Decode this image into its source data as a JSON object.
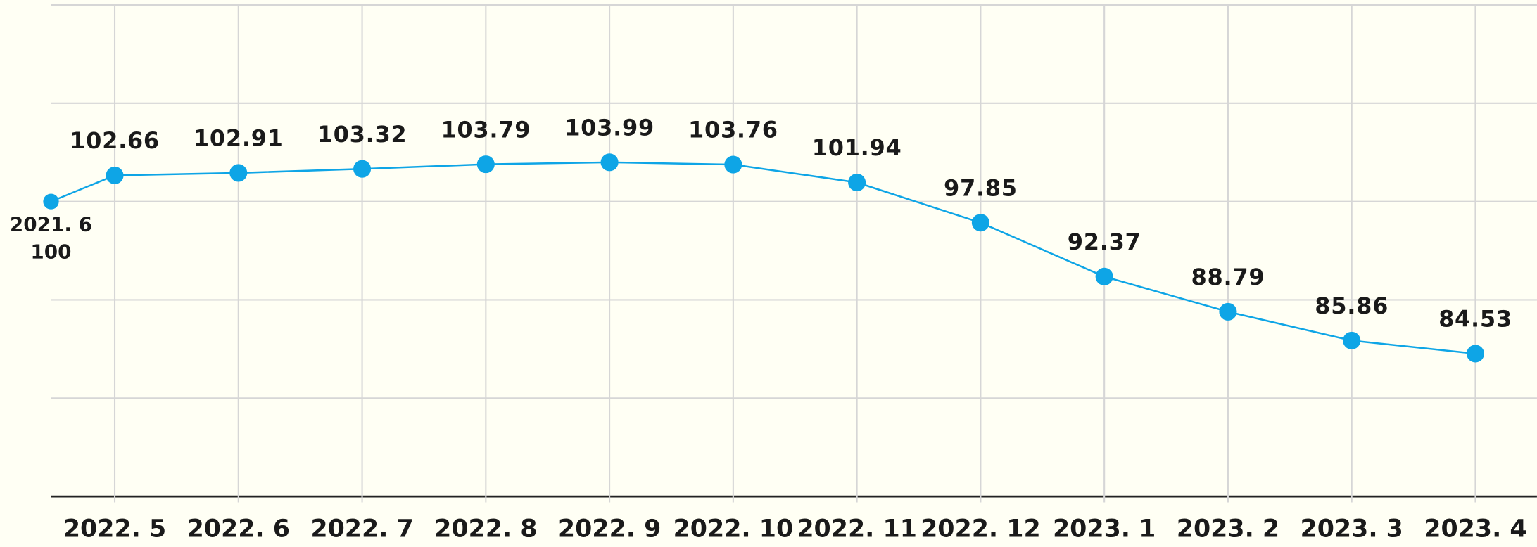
{
  "chart_data": {
    "type": "line",
    "categories": [
      "2021. 6",
      "2022. 5",
      "2022. 6",
      "2022. 7",
      "2022. 8",
      "2022. 9",
      "2022. 10",
      "2022. 11",
      "2022. 12",
      "2023. 1",
      "2023. 2",
      "2023. 3",
      "2023. 4"
    ],
    "values": [
      100,
      102.66,
      102.91,
      103.32,
      103.79,
      103.99,
      103.76,
      101.94,
      97.85,
      92.37,
      88.79,
      85.86,
      84.53
    ],
    "color": "#0ea5e6",
    "ylim": [
      70,
      120
    ],
    "yticks": [
      70,
      80,
      90,
      100,
      110,
      120
    ],
    "grid": true
  }
}
